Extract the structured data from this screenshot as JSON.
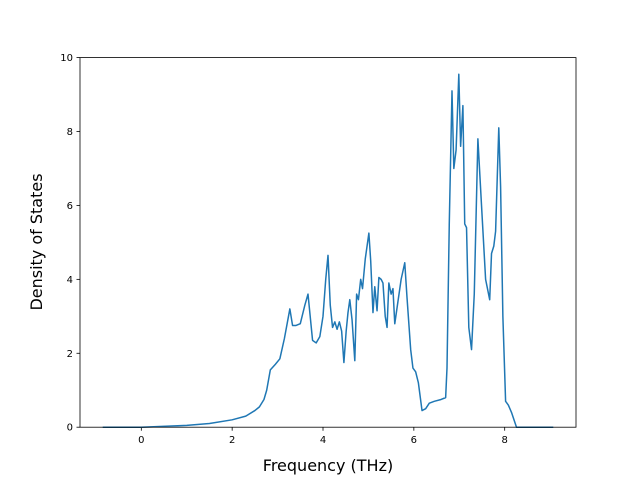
{
  "chart_data": {
    "type": "line",
    "xlabel": "Frequency (THz)",
    "ylabel": "Density of States",
    "x": [
      -0.85,
      0,
      1,
      1.5,
      2,
      2.3,
      2.5,
      2.6,
      2.7,
      2.76,
      2.84,
      2.95,
      3.05,
      3.15,
      3.27,
      3.33,
      3.4,
      3.5,
      3.6,
      3.67,
      3.77,
      3.85,
      3.93,
      4.0,
      4.06,
      4.11,
      4.16,
      4.21,
      4.26,
      4.31,
      4.36,
      4.41,
      4.46,
      4.51,
      4.55,
      4.59,
      4.64,
      4.7,
      4.74,
      4.78,
      4.83,
      4.87,
      4.93,
      5.01,
      5.05,
      5.1,
      5.14,
      5.19,
      5.23,
      5.28,
      5.32,
      5.37,
      5.41,
      5.45,
      5.5,
      5.54,
      5.58,
      5.65,
      5.72,
      5.8,
      5.85,
      5.93,
      5.98,
      6.04,
      6.1,
      6.18,
      6.26,
      6.34,
      6.45,
      6.6,
      6.7,
      6.73,
      6.78,
      6.84,
      6.88,
      6.93,
      6.99,
      7.03,
      7.08,
      7.12,
      7.16,
      7.21,
      7.27,
      7.33,
      7.41,
      7.49,
      7.58,
      7.67,
      7.71,
      7.76,
      7.8,
      7.87,
      7.91,
      7.96,
      8.02,
      8.08,
      8.15,
      8.26,
      8.5,
      9.07
    ],
    "values": [
      0,
      0,
      0.05,
      0.1,
      0.2,
      0.3,
      0.45,
      0.55,
      0.75,
      1.0,
      1.55,
      1.7,
      1.85,
      2.4,
      3.2,
      2.75,
      2.75,
      2.8,
      3.3,
      3.6,
      2.35,
      2.28,
      2.45,
      3.0,
      4.0,
      4.65,
      3.3,
      2.7,
      2.85,
      2.65,
      2.85,
      2.6,
      1.75,
      2.6,
      3.1,
      3.45,
      2.9,
      1.8,
      3.6,
      3.45,
      4.0,
      3.75,
      4.55,
      5.25,
      4.5,
      3.1,
      3.8,
      3.15,
      4.05,
      4.0,
      3.9,
      3.0,
      2.7,
      3.9,
      3.6,
      3.75,
      2.8,
      3.4,
      4.0,
      4.45,
      3.5,
      2.1,
      1.6,
      1.5,
      1.2,
      0.45,
      0.5,
      0.65,
      0.7,
      0.75,
      0.8,
      1.6,
      5.5,
      9.1,
      7.0,
      7.5,
      9.55,
      7.6,
      8.7,
      5.5,
      5.4,
      2.7,
      2.1,
      3.6,
      7.8,
      6.0,
      4.0,
      3.45,
      4.7,
      4.9,
      5.3,
      8.1,
      6.5,
      3.0,
      0.7,
      0.6,
      0.4,
      0,
      0,
      0
    ],
    "color": "#1f77b4",
    "xlim": [
      -1.35,
      9.57
    ],
    "xticks": [
      0,
      2,
      4,
      6,
      8
    ],
    "ylim": [
      0,
      10
    ],
    "yticks": [
      0,
      2,
      4,
      6,
      8,
      10
    ]
  }
}
